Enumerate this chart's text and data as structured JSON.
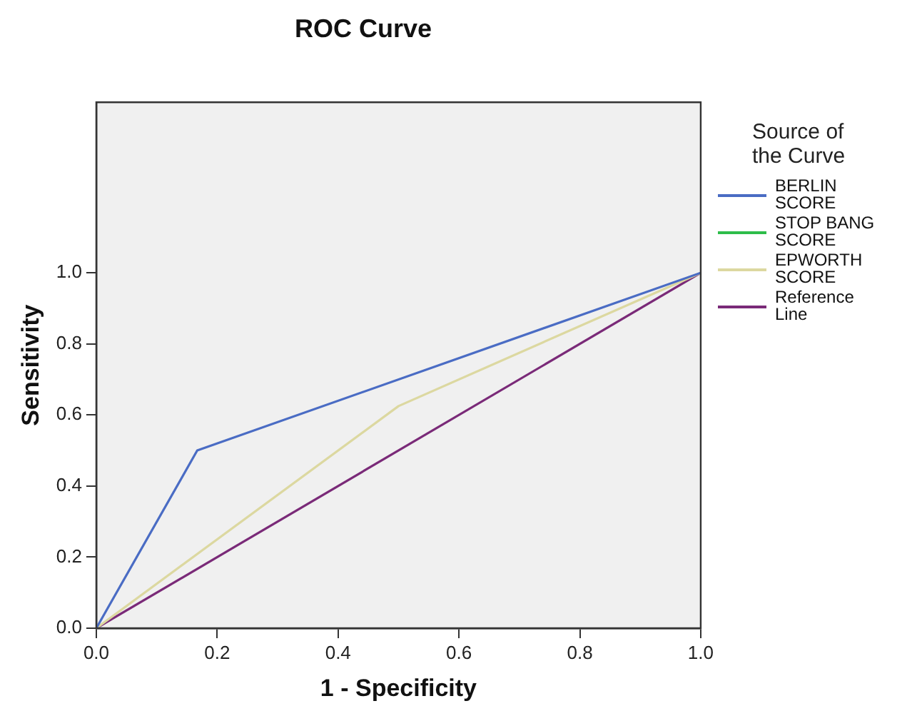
{
  "chart_data": {
    "type": "line",
    "title": "ROC Curve",
    "xlabel": "1 - Specificity",
    "ylabel": "Sensitivity",
    "legend_title": "Source of the Curve",
    "legend": "right",
    "marker": "none",
    "line_style": "solid",
    "xlim": [
      0,
      1
    ],
    "ylim": [
      0,
      1.48
    ],
    "xticks": [
      {
        "value": 0,
        "label": "0.0"
      },
      {
        "value": 0.2,
        "label": "0.2"
      },
      {
        "value": 0.4,
        "label": "0.4"
      },
      {
        "value": 0.6,
        "label": "0.6"
      },
      {
        "value": 0.8,
        "label": "0.8"
      },
      {
        "value": 1,
        "label": "1.0"
      }
    ],
    "yticks": [
      {
        "value": 0,
        "label": "0.0"
      },
      {
        "value": 0.2,
        "label": "0.2"
      },
      {
        "value": 0.4,
        "label": "0.4"
      },
      {
        "value": 0.6,
        "label": "0.6"
      },
      {
        "value": 0.8,
        "label": "0.8"
      },
      {
        "value": 1,
        "label": "1.0"
      }
    ],
    "series": [
      {
        "name": "BERLIN SCORE",
        "color": "#4a6cc4",
        "x": [
          0,
          0.167,
          1
        ],
        "values": [
          0,
          0.5,
          1
        ]
      },
      {
        "name": "STOP BANG SCORE",
        "color": "#2ebd4a"
      },
      {
        "name": "EPWORTH SCORE",
        "color": "#dcd8a0",
        "x": [
          0,
          0.5,
          1
        ],
        "values": [
          0,
          0.625,
          1
        ]
      },
      {
        "name": "Reference Line",
        "color": "#7a2a78",
        "x": [
          0,
          1
        ],
        "values": [
          0,
          1
        ]
      }
    ]
  }
}
